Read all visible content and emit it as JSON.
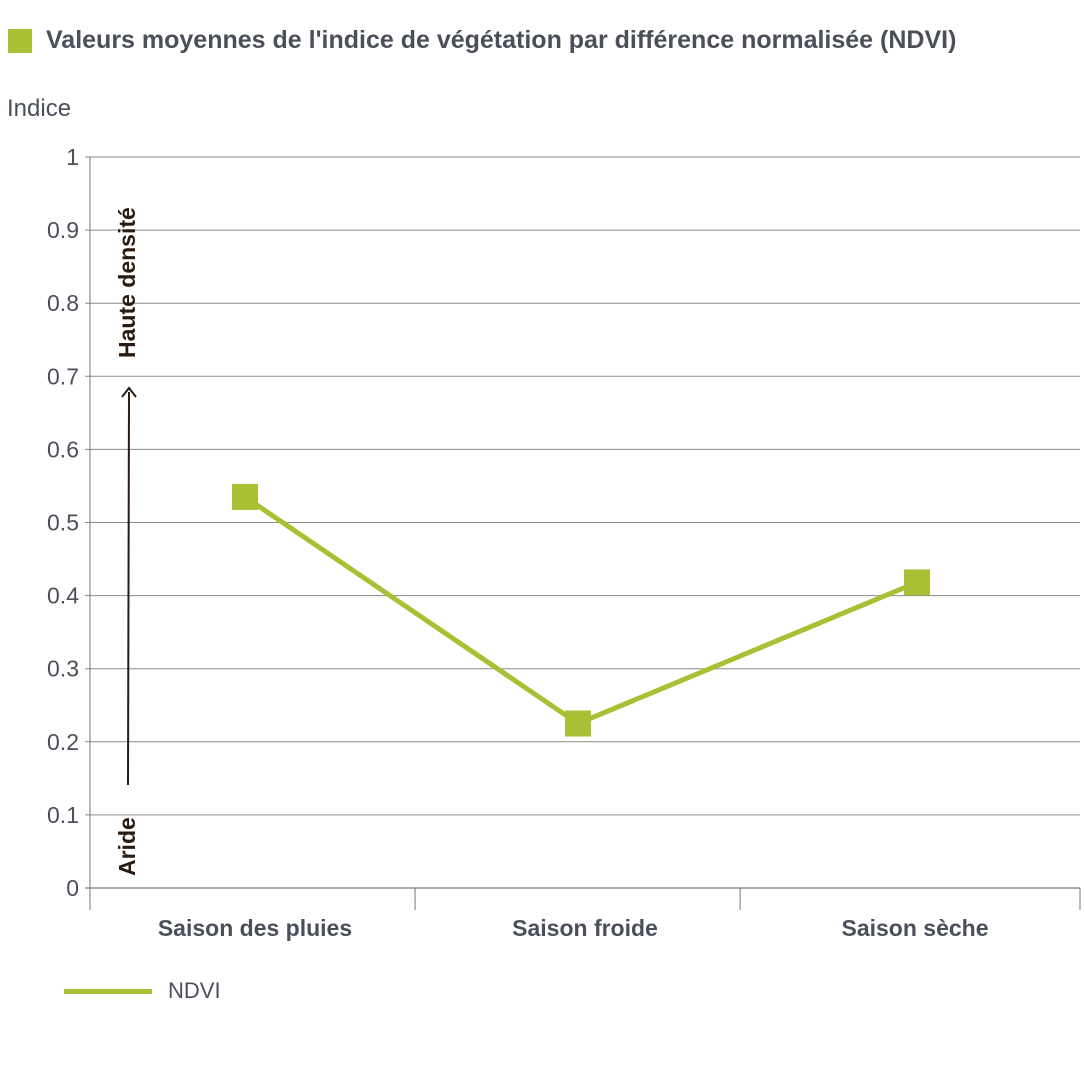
{
  "chart_data": {
    "type": "line",
    "title": "Valeurs moyennes de l'indice de végétation par différence normalisée (NDVI)",
    "ylabel": "Indice",
    "xlabel": "",
    "ylim": [
      0,
      1
    ],
    "yticks": [
      "0",
      "0.1",
      "0.2",
      "0.3",
      "0.4",
      "0.5",
      "0.6",
      "0.7",
      "0.8",
      "0.9",
      "1"
    ],
    "categories": [
      "Saison des pluies",
      "Saison froide",
      "Saison sèche"
    ],
    "series": [
      {
        "name": "NDVI",
        "values": [
          0.535,
          0.225,
          0.418
        ],
        "color": "#a8c033"
      }
    ],
    "annotations": {
      "low": "Aride",
      "high": "Haute densité"
    },
    "grid": true,
    "legend": "bottom-left"
  }
}
